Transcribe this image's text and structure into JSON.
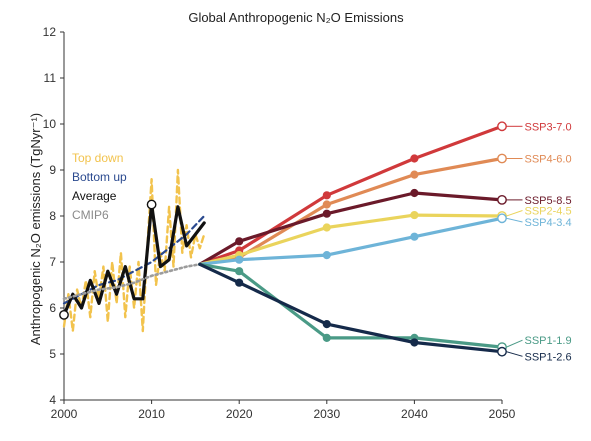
{
  "chart_data": {
    "type": "line",
    "title": "Global Anthropogenic N₂O Emissions",
    "ylabel": "Anthropogenic N₂O emissions (TgNyr⁻¹)",
    "xlabel": "",
    "xlim": [
      2000,
      2050
    ],
    "ylim": [
      4,
      12
    ],
    "x_ticks": [
      "2000",
      "2010",
      "2020",
      "2030",
      "2040",
      "2050"
    ],
    "y_ticks": [
      "4",
      "5",
      "6",
      "7",
      "8",
      "9",
      "10",
      "11",
      "12"
    ],
    "grid": false,
    "legend_position": "left-middle",
    "historical": [
      {
        "name": "Top down",
        "color": "#f2c34d",
        "style": "dashed",
        "x": [
          2000,
          2000.5,
          2001,
          2001.5,
          2002,
          2002.5,
          2003,
          2003.5,
          2004,
          2004.5,
          2005,
          2005.5,
          2006,
          2006.5,
          2007,
          2007.5,
          2008,
          2008.5,
          2009,
          2009.5,
          2010,
          2010.5,
          2011,
          2011.5,
          2012,
          2012.5,
          2013,
          2013.5,
          2014,
          2014.5,
          2015,
          2015.5,
          2016
        ],
        "y": [
          5.6,
          6.3,
          5.5,
          6.4,
          6.0,
          6.6,
          5.8,
          6.8,
          6.2,
          6.9,
          5.7,
          7.0,
          6.1,
          7.2,
          5.8,
          6.9,
          6.0,
          7.0,
          5.5,
          7.3,
          8.8,
          6.5,
          7.2,
          6.8,
          8.2,
          6.9,
          9.0,
          7.2,
          7.8,
          7.1,
          7.6,
          7.3,
          7.6
        ]
      },
      {
        "name": "Bottom up",
        "color": "#2b4a8f",
        "style": "dashed",
        "x": [
          2000,
          2002,
          2004,
          2006,
          2008,
          2010,
          2012,
          2014,
          2016
        ],
        "y": [
          6.1,
          6.3,
          6.5,
          6.6,
          6.8,
          7.0,
          7.3,
          7.6,
          8.0
        ]
      },
      {
        "name": "Average",
        "color": "#111111",
        "style": "solid",
        "x": [
          2000,
          2001,
          2002,
          2003,
          2004,
          2005,
          2006,
          2007,
          2008,
          2009,
          2010,
          2011,
          2012,
          2013,
          2014,
          2015,
          2016
        ],
        "y": [
          5.85,
          6.3,
          6.0,
          6.6,
          6.1,
          6.8,
          6.3,
          6.9,
          6.2,
          6.2,
          8.25,
          6.9,
          7.05,
          8.2,
          7.35,
          7.6,
          7.85
        ]
      },
      {
        "name": "CMIP6",
        "color": "#9c9c9c",
        "style": "dotted",
        "x": [
          2000,
          2002,
          2004,
          2006,
          2008,
          2010,
          2012,
          2014,
          2015.5
        ],
        "y": [
          6.2,
          6.3,
          6.4,
          6.45,
          6.55,
          6.7,
          6.8,
          6.9,
          6.95
        ]
      }
    ],
    "scenarios_start": {
      "x": 2015.5,
      "y": 6.95
    },
    "series": [
      {
        "name": "SSP3-7.0",
        "color": "#d0393b",
        "x": [
          2020,
          2030,
          2040,
          2050
        ],
        "y": [
          7.25,
          8.45,
          9.25,
          9.95
        ]
      },
      {
        "name": "SSP4-6.0",
        "color": "#e08a55",
        "x": [
          2020,
          2030,
          2040,
          2050
        ],
        "y": [
          7.1,
          8.25,
          8.9,
          9.25
        ]
      },
      {
        "name": "SSP5-8.5",
        "color": "#6b1a2a",
        "x": [
          2020,
          2030,
          2040,
          2050
        ],
        "y": [
          7.45,
          8.05,
          8.5,
          8.35
        ]
      },
      {
        "name": "SSP2-4.5",
        "color": "#ead45c",
        "x": [
          2020,
          2030,
          2040,
          2050
        ],
        "y": [
          7.15,
          7.75,
          8.02,
          8.0
        ]
      },
      {
        "name": "SSP4-3.4",
        "color": "#6eb4d8",
        "x": [
          2020,
          2030,
          2040,
          2050
        ],
        "y": [
          7.05,
          7.15,
          7.55,
          7.95
        ]
      },
      {
        "name": "SSP1-1.9",
        "color": "#4a9a86",
        "x": [
          2020,
          2030,
          2040,
          2050
        ],
        "y": [
          6.8,
          5.35,
          5.35,
          5.15
        ]
      },
      {
        "name": "SSP1-2.6",
        "color": "#152a4a",
        "x": [
          2020,
          2030,
          2040,
          2050
        ],
        "y": [
          6.55,
          5.65,
          5.25,
          5.05
        ]
      }
    ],
    "end_labels": [
      {
        "series": "SSP3-7.0",
        "label_y": 9.95
      },
      {
        "series": "SSP4-6.0",
        "label_y": 9.25
      },
      {
        "series": "SSP5-8.5",
        "label_y": 8.35
      },
      {
        "series": "SSP2-4.5",
        "label_y": 8.12
      },
      {
        "series": "SSP4-3.4",
        "label_y": 7.87
      },
      {
        "series": "SSP1-1.9",
        "label_y": 5.3
      },
      {
        "series": "SSP1-2.6",
        "label_y": 4.95
      }
    ]
  }
}
